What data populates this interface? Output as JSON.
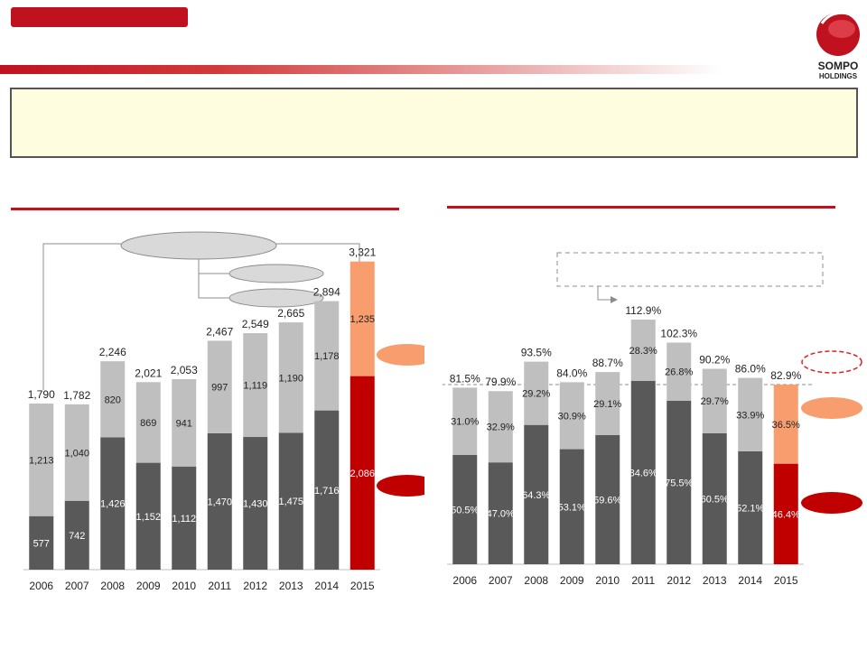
{
  "logo": {
    "line1": "SOMPO",
    "line2": "HOLDINGS"
  },
  "colors": {
    "brand_red": "#c0111f",
    "dark_bar": "#595959",
    "light_bar": "#bfbfbf",
    "highlight_dark": "#c00000",
    "highlight_light": "#f79d6e",
    "box_fill": "#fefde0"
  },
  "chart_data": [
    {
      "type": "bar",
      "stacked": true,
      "categories": [
        "2006",
        "2007",
        "2008",
        "2009",
        "2010",
        "2011",
        "2012",
        "2013",
        "2014",
        "2015"
      ],
      "series": [
        {
          "name": "bottom",
          "values": [
            577,
            742,
            1426,
            1152,
            1112,
            1470,
            1430,
            1475,
            1716,
            2086
          ],
          "labels": [
            "577",
            "742",
            "1,426",
            "1,152",
            "1,112",
            "1,470",
            "1,430",
            "1,475",
            "1,716",
            "2,086"
          ]
        },
        {
          "name": "top",
          "values": [
            1213,
            1040,
            820,
            869,
            941,
            997,
            1119,
            1190,
            1178,
            1235
          ],
          "labels": [
            "1,213",
            "1,040",
            "820",
            "869",
            "941",
            "997",
            "1,119",
            "1,190",
            "1,178",
            "1,235"
          ]
        }
      ],
      "totals": [
        1790,
        1782,
        2246,
        2021,
        2053,
        2467,
        2549,
        2665,
        2894,
        3321
      ],
      "total_labels": [
        "1,790",
        "1,782",
        "2,246",
        "2,021",
        "2,053",
        "2,467",
        "2,549",
        "2,665",
        "2,894",
        "3,321"
      ],
      "highlight_category": "2015",
      "ylim": [
        0,
        3600
      ]
    },
    {
      "type": "bar",
      "stacked": true,
      "categories": [
        "2006",
        "2007",
        "2008",
        "2009",
        "2010",
        "2011",
        "2012",
        "2013",
        "2014",
        "2015"
      ],
      "series": [
        {
          "name": "bottom",
          "values": [
            50.5,
            47.0,
            64.3,
            53.1,
            59.6,
            84.6,
            75.5,
            60.5,
            52.1,
            46.4
          ],
          "labels": [
            "50.5%",
            "47.0%",
            "64.3%",
            "53.1%",
            "59.6%",
            "84.6%",
            "75.5%",
            "60.5%",
            "52.1%",
            "46.4%"
          ]
        },
        {
          "name": "top",
          "values": [
            31.0,
            32.9,
            29.2,
            30.9,
            29.1,
            28.3,
            26.8,
            29.7,
            33.9,
            36.5
          ],
          "labels": [
            "31.0%",
            "32.9%",
            "29.2%",
            "30.9%",
            "29.1%",
            "28.3%",
            "26.8%",
            "29.7%",
            "33.9%",
            "36.5%"
          ]
        }
      ],
      "totals": [
        81.5,
        79.9,
        93.5,
        84.0,
        88.7,
        112.9,
        102.3,
        90.2,
        86.0,
        82.9
      ],
      "total_labels": [
        "81.5%",
        "79.9%",
        "93.5%",
        "84.0%",
        "88.7%",
        "112.9%",
        "102.3%",
        "90.2%",
        "86.0%",
        "82.9%"
      ],
      "reference_line": 82.9,
      "highlight_category": "2015",
      "ylim": [
        0,
        125
      ]
    }
  ]
}
